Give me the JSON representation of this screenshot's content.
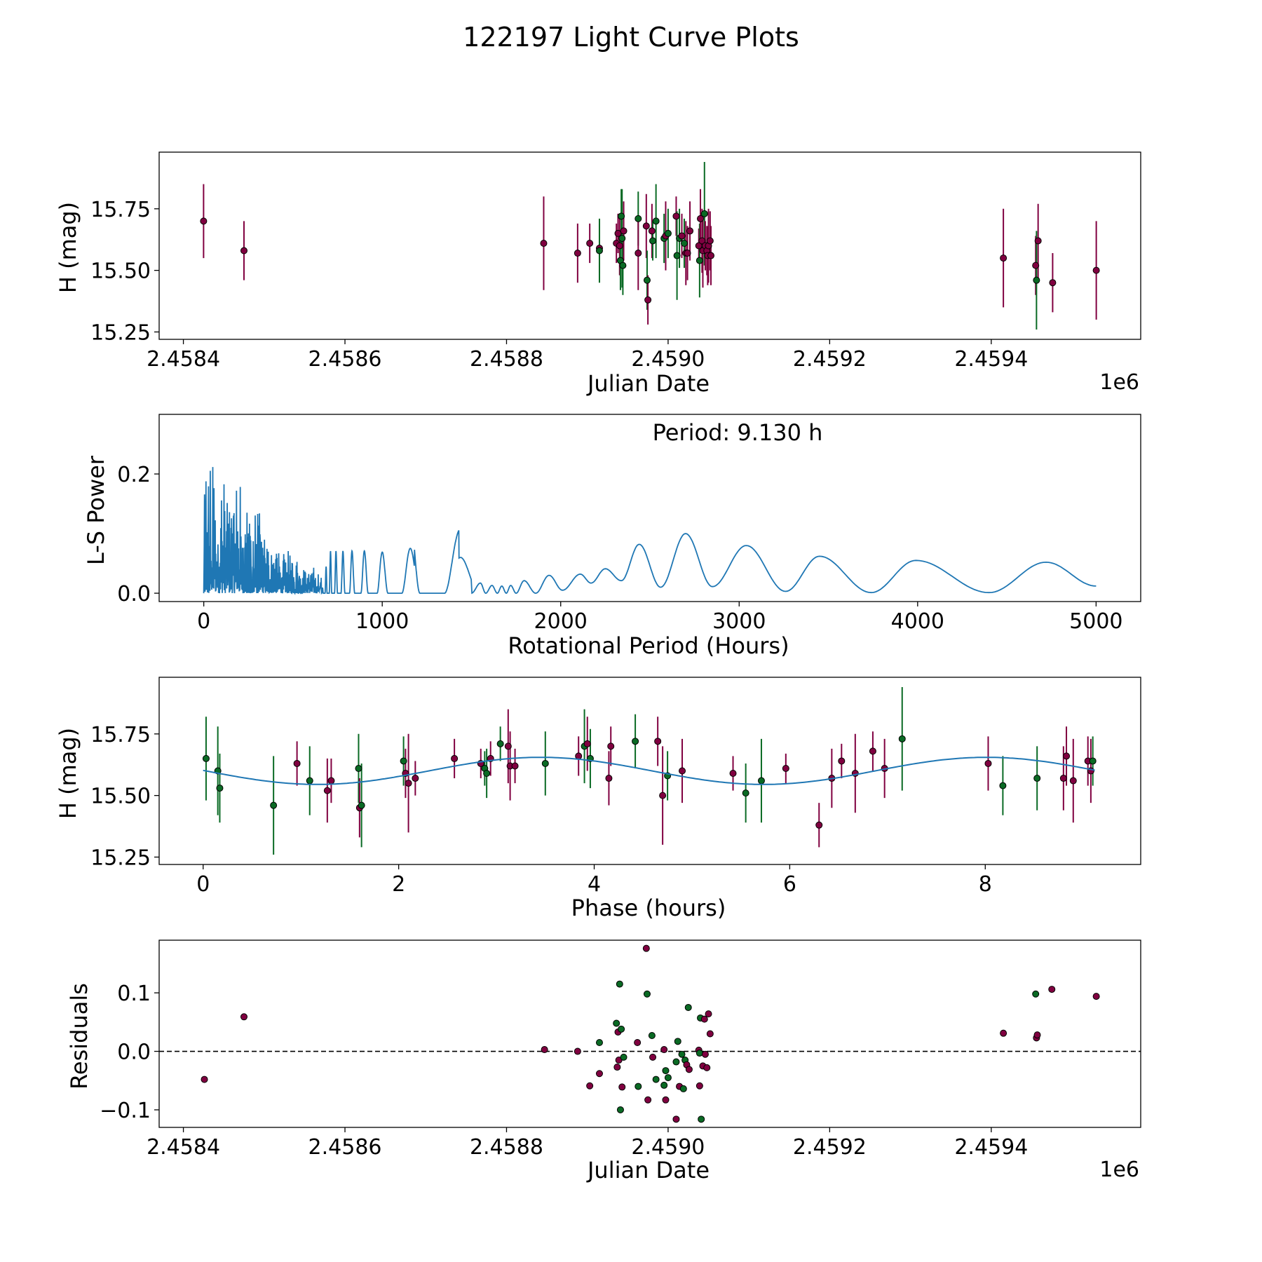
{
  "figure": {
    "title": "122197 Light Curve Plots"
  },
  "colors": {
    "magenta": "#800040",
    "green": "#0a6a24",
    "line": "#1f77b4",
    "frame": "#000000"
  },
  "chart_data": [
    {
      "id": "lightcurve",
      "type": "scatter",
      "xlabel": "Julian Date",
      "ylabel": "H (mag)",
      "offset_label": "1e6",
      "xlim": [
        2458370,
        2459585
      ],
      "ylim": [
        15.22,
        15.98
      ],
      "xticks": [
        2458400,
        2458600,
        2458800,
        2459000,
        2459200,
        2459400
      ],
      "xtick_labels": [
        "2.4584",
        "2.4586",
        "2.4588",
        "2.4590",
        "2.4592",
        "2.4594"
      ],
      "yticks": [
        15.25,
        15.5,
        15.75
      ],
      "ytick_labels": [
        "15.25",
        "15.50",
        "15.75"
      ],
      "points": [
        [
          2458425,
          15.7,
          0.15,
          "m"
        ],
        [
          2458475,
          15.58,
          0.12,
          "m"
        ],
        [
          2458846,
          15.61,
          0.19,
          "m"
        ],
        [
          2458888,
          15.57,
          0.12,
          "m"
        ],
        [
          2458903,
          15.61,
          0.08,
          "m"
        ],
        [
          2458915,
          15.59,
          0.1,
          "m"
        ],
        [
          2458915,
          15.58,
          0.13,
          "g"
        ],
        [
          2458936,
          15.61,
          0.08,
          "m"
        ],
        [
          2458938,
          15.65,
          0.08,
          "m"
        ],
        [
          2458940,
          15.6,
          0.12,
          "m"
        ],
        [
          2458941,
          15.54,
          0.12,
          "g"
        ],
        [
          2458942,
          15.72,
          0.11,
          "g"
        ],
        [
          2458943,
          15.63,
          0.2,
          "g"
        ],
        [
          2458944,
          15.52,
          0.12,
          "g"
        ],
        [
          2458945,
          15.66,
          0.12,
          "m"
        ],
        [
          2458963,
          15.71,
          0.11,
          "g"
        ],
        [
          2458963,
          15.57,
          0.15,
          "m"
        ],
        [
          2458973,
          15.68,
          0.13,
          "m"
        ],
        [
          2458974,
          15.46,
          0.12,
          "g"
        ],
        [
          2458975,
          15.38,
          0.1,
          "m"
        ],
        [
          2458980,
          15.66,
          0.11,
          "m"
        ],
        [
          2458981,
          15.62,
          0.08,
          "g"
        ],
        [
          2458985,
          15.7,
          0.15,
          "g"
        ],
        [
          2458995,
          15.63,
          0.1,
          "g"
        ],
        [
          2458997,
          15.64,
          0.14,
          "m"
        ],
        [
          2459000,
          15.65,
          0.1,
          "g"
        ],
        [
          2459010,
          15.72,
          0.08,
          "m"
        ],
        [
          2459011,
          15.56,
          0.18,
          "g"
        ],
        [
          2459014,
          15.63,
          0.12,
          "g"
        ],
        [
          2459017,
          15.64,
          0.09,
          "m"
        ],
        [
          2459020,
          15.61,
          0.1,
          "g"
        ],
        [
          2459022,
          15.57,
          0.13,
          "m"
        ],
        [
          2459024,
          15.57,
          0.11,
          "m"
        ],
        [
          2459027,
          15.66,
          0.12,
          "m"
        ],
        [
          2459038,
          15.6,
          0.07,
          "m"
        ],
        [
          2459039,
          15.54,
          0.15,
          "g"
        ],
        [
          2459040,
          15.71,
          0.12,
          "m"
        ],
        [
          2459042,
          15.62,
          0.13,
          "m"
        ],
        [
          2459043,
          15.58,
          0.15,
          "m"
        ],
        [
          2459045,
          15.73,
          0.21,
          "g"
        ],
        [
          2459046,
          15.6,
          0.1,
          "m"
        ],
        [
          2459048,
          15.58,
          0.1,
          "m"
        ],
        [
          2459049,
          15.56,
          0.12,
          "m"
        ],
        [
          2459050,
          15.6,
          0.15,
          "m"
        ],
        [
          2459052,
          15.62,
          0.12,
          "m"
        ],
        [
          2459053,
          15.56,
          0.12,
          "m"
        ],
        [
          2459415,
          15.55,
          0.2,
          "m"
        ],
        [
          2459455,
          15.52,
          0.12,
          "m"
        ],
        [
          2459456,
          15.46,
          0.2,
          "g"
        ],
        [
          2459458,
          15.62,
          0.15,
          "m"
        ],
        [
          2459476,
          15.45,
          0.12,
          "m"
        ],
        [
          2459530,
          15.5,
          0.2,
          "m"
        ]
      ]
    },
    {
      "id": "periodogram",
      "type": "line",
      "xlabel": "Rotational Period (Hours)",
      "ylabel": "L-S Power",
      "annotation": "Period: 9.130 h",
      "xlim": [
        -250,
        5250
      ],
      "ylim": [
        -0.014,
        0.3
      ],
      "xticks": [
        0,
        1000,
        2000,
        3000,
        4000,
        5000
      ],
      "xtick_labels": [
        "0",
        "1000",
        "2000",
        "3000",
        "4000",
        "5000"
      ],
      "yticks": [
        0,
        0.2
      ],
      "ytick_labels": [
        "0.0",
        "0.2"
      ],
      "peaks": [
        [
          1550,
          0.017
        ],
        [
          1615,
          0.013
        ],
        [
          1670,
          0.012
        ],
        [
          1720,
          0.013
        ],
        [
          1795,
          0.021
        ],
        [
          1935,
          0.03
        ],
        [
          2110,
          0.032
        ],
        [
          2250,
          0.041
        ],
        [
          2440,
          0.082
        ],
        [
          2700,
          0.1
        ],
        [
          3040,
          0.08
        ],
        [
          3450,
          0.062
        ],
        [
          3990,
          0.055
        ],
        [
          4720,
          0.052
        ]
      ],
      "troughs": [
        [
          1500,
          0
        ],
        [
          1580,
          0
        ],
        [
          1645,
          0
        ],
        [
          1695,
          0
        ],
        [
          1750,
          0
        ],
        [
          1860,
          0
        ],
        [
          2010,
          0.005
        ],
        [
          2170,
          0.017
        ],
        [
          2340,
          0.021
        ],
        [
          2560,
          0.01
        ],
        [
          2850,
          0.011
        ],
        [
          3260,
          0.003
        ],
        [
          3740,
          0.001
        ],
        [
          4400,
          0.001
        ],
        [
          5000,
          0.012
        ]
      ]
    },
    {
      "id": "phased",
      "type": "scatter",
      "xlabel": "Phase (hours)",
      "ylabel": "H (mag)",
      "xlim": [
        -0.45,
        9.59
      ],
      "ylim": [
        15.22,
        15.98
      ],
      "xticks": [
        0,
        2,
        4,
        6,
        8
      ],
      "xtick_labels": [
        "0",
        "2",
        "4",
        "6",
        "8"
      ],
      "yticks": [
        15.25,
        15.5,
        15.75
      ],
      "ytick_labels": [
        "15.25",
        "15.50",
        "15.75"
      ],
      "model": {
        "mean": 15.6,
        "amplitude": 0.055,
        "period": 4.565,
        "peak_phase": 3.45
      },
      "points": [
        [
          0.03,
          15.65,
          0.17,
          "g"
        ],
        [
          0.15,
          15.6,
          0.18,
          "g"
        ],
        [
          0.17,
          15.53,
          0.14,
          "g"
        ],
        [
          0.72,
          15.46,
          0.2,
          "g"
        ],
        [
          0.96,
          15.63,
          0.09,
          "m"
        ],
        [
          1.09,
          15.56,
          0.14,
          "g"
        ],
        [
          1.27,
          15.52,
          0.13,
          "m"
        ],
        [
          1.31,
          15.56,
          0.09,
          "m"
        ],
        [
          1.59,
          15.61,
          0.14,
          "g"
        ],
        [
          1.6,
          15.45,
          0.12,
          "m"
        ],
        [
          1.62,
          15.46,
          0.17,
          "g"
        ],
        [
          2.05,
          15.64,
          0.1,
          "g"
        ],
        [
          2.07,
          15.59,
          0.1,
          "m"
        ],
        [
          2.1,
          15.55,
          0.2,
          "m"
        ],
        [
          2.17,
          15.57,
          0.07,
          "m"
        ],
        [
          2.57,
          15.65,
          0.08,
          "m"
        ],
        [
          2.84,
          15.63,
          0.06,
          "m"
        ],
        [
          2.88,
          15.61,
          0.07,
          "g"
        ],
        [
          2.9,
          15.59,
          0.1,
          "g"
        ],
        [
          2.94,
          15.65,
          0.07,
          "m"
        ],
        [
          3.04,
          15.71,
          0.07,
          "g"
        ],
        [
          3.12,
          15.7,
          0.15,
          "m"
        ],
        [
          3.14,
          15.62,
          0.14,
          "m"
        ],
        [
          3.19,
          15.62,
          0.07,
          "m"
        ],
        [
          3.5,
          15.63,
          0.13,
          "g"
        ],
        [
          3.84,
          15.66,
          0.08,
          "m"
        ],
        [
          3.9,
          15.7,
          0.15,
          "g"
        ],
        [
          3.93,
          15.71,
          0.11,
          "m"
        ],
        [
          3.96,
          15.65,
          0.12,
          "g"
        ],
        [
          4.15,
          15.57,
          0.11,
          "m"
        ],
        [
          4.17,
          15.7,
          0.08,
          "m"
        ],
        [
          4.42,
          15.72,
          0.11,
          "g"
        ],
        [
          4.65,
          15.72,
          0.1,
          "m"
        ],
        [
          4.7,
          15.5,
          0.2,
          "m"
        ],
        [
          4.75,
          15.58,
          0.1,
          "g"
        ],
        [
          4.9,
          15.6,
          0.13,
          "m"
        ],
        [
          5.42,
          15.59,
          0.07,
          "m"
        ],
        [
          5.55,
          15.51,
          0.12,
          "g"
        ],
        [
          5.71,
          15.56,
          0.17,
          "g"
        ],
        [
          5.96,
          15.61,
          0.06,
          "m"
        ],
        [
          6.3,
          15.38,
          0.09,
          "m"
        ],
        [
          6.43,
          15.57,
          0.12,
          "m"
        ],
        [
          6.53,
          15.64,
          0.07,
          "m"
        ],
        [
          6.67,
          15.59,
          0.16,
          "m"
        ],
        [
          6.85,
          15.68,
          0.08,
          "m"
        ],
        [
          6.97,
          15.61,
          0.12,
          "m"
        ],
        [
          7.15,
          15.73,
          0.21,
          "g"
        ],
        [
          8.03,
          15.63,
          0.11,
          "m"
        ],
        [
          8.18,
          15.54,
          0.12,
          "g"
        ],
        [
          8.53,
          15.57,
          0.13,
          "g"
        ],
        [
          8.8,
          15.57,
          0.13,
          "m"
        ],
        [
          8.83,
          15.66,
          0.12,
          "m"
        ],
        [
          8.9,
          15.56,
          0.17,
          "m"
        ],
        [
          9.05,
          15.64,
          0.1,
          "m"
        ],
        [
          9.08,
          15.6,
          0.13,
          "m"
        ],
        [
          9.1,
          15.64,
          0.1,
          "g"
        ]
      ]
    },
    {
      "id": "residuals",
      "type": "scatter",
      "xlabel": "Julian Date",
      "ylabel": "Residuals",
      "offset_label": "1e6",
      "xlim": [
        2458370,
        2459585
      ],
      "ylim": [
        -0.13,
        0.19
      ],
      "xticks": [
        2458400,
        2458600,
        2458800,
        2459000,
        2459200,
        2459400
      ],
      "xtick_labels": [
        "2.4584",
        "2.4586",
        "2.4588",
        "2.4590",
        "2.4592",
        "2.4594"
      ],
      "yticks": [
        -0.1,
        0,
        0.1
      ],
      "ytick_labels": [
        "−0.1",
        "0.0",
        "0.1"
      ],
      "reference_line": 0,
      "points": [
        [
          2458426,
          -0.048,
          "m"
        ],
        [
          2458475,
          0.059,
          "m"
        ],
        [
          2458847,
          0.003,
          "m"
        ],
        [
          2458888,
          0.0,
          "m"
        ],
        [
          2458903,
          -0.059,
          "m"
        ],
        [
          2458915,
          0.015,
          "g"
        ],
        [
          2458915,
          -0.038,
          "m"
        ],
        [
          2458936,
          0.048,
          "g"
        ],
        [
          2458937,
          -0.027,
          "m"
        ],
        [
          2458938,
          0.033,
          "m"
        ],
        [
          2458939,
          -0.015,
          "m"
        ],
        [
          2458940,
          0.115,
          "g"
        ],
        [
          2458941,
          -0.1,
          "g"
        ],
        [
          2458942,
          0.038,
          "g"
        ],
        [
          2458943,
          -0.061,
          "m"
        ],
        [
          2458945,
          -0.01,
          "g"
        ],
        [
          2458962,
          0.015,
          "m"
        ],
        [
          2458963,
          -0.06,
          "g"
        ],
        [
          2458973,
          0.176,
          "m"
        ],
        [
          2458974,
          0.098,
          "g"
        ],
        [
          2458975,
          -0.083,
          "m"
        ],
        [
          2458980,
          0.027,
          "g"
        ],
        [
          2458981,
          -0.01,
          "m"
        ],
        [
          2458985,
          -0.048,
          "g"
        ],
        [
          2458995,
          0.003,
          "m"
        ],
        [
          2458995,
          -0.058,
          "g"
        ],
        [
          2458997,
          -0.083,
          "m"
        ],
        [
          2458997,
          -0.033,
          "g"
        ],
        [
          2459000,
          -0.045,
          "g"
        ],
        [
          2459010,
          -0.018,
          "g"
        ],
        [
          2459010,
          -0.116,
          "m"
        ],
        [
          2459012,
          0.017,
          "g"
        ],
        [
          2459014,
          -0.06,
          "m"
        ],
        [
          2459017,
          -0.005,
          "g"
        ],
        [
          2459019,
          -0.064,
          "g"
        ],
        [
          2459021,
          -0.015,
          "g"
        ],
        [
          2459023,
          -0.023,
          "m"
        ],
        [
          2459025,
          0.075,
          "g"
        ],
        [
          2459026,
          -0.031,
          "m"
        ],
        [
          2459038,
          0.002,
          "m"
        ],
        [
          2459039,
          -0.003,
          "g"
        ],
        [
          2459039,
          -0.059,
          "m"
        ],
        [
          2459040,
          0.057,
          "g"
        ],
        [
          2459041,
          -0.116,
          "g"
        ],
        [
          2459043,
          -0.025,
          "m"
        ],
        [
          2459045,
          0.055,
          "m"
        ],
        [
          2459046,
          -0.005,
          "m"
        ],
        [
          2459048,
          -0.028,
          "m"
        ],
        [
          2459050,
          0.064,
          "m"
        ],
        [
          2459052,
          0.03,
          "m"
        ],
        [
          2459415,
          0.031,
          "m"
        ],
        [
          2459455,
          0.098,
          "g"
        ],
        [
          2459456,
          0.023,
          "m"
        ],
        [
          2459457,
          0.028,
          "m"
        ],
        [
          2459475,
          0.106,
          "m"
        ],
        [
          2459530,
          0.094,
          "m"
        ]
      ]
    }
  ]
}
